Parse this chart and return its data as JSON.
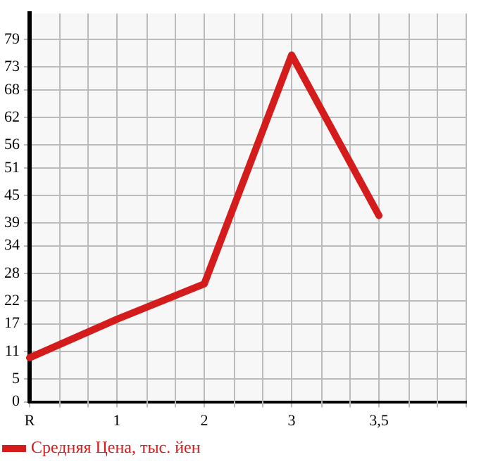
{
  "chart_data": {
    "type": "line",
    "categories": [
      "R",
      "1",
      "2",
      "3",
      "3,5",
      null
    ],
    "series": [
      {
        "name": "Средняя Цена, тыс. йен",
        "color": "#d41c1c",
        "values": [
          9.6,
          18,
          25.7,
          75.6,
          40.6,
          null
        ]
      }
    ],
    "ylim": [
      0,
      84.64
    ],
    "yticks": [
      0,
      5,
      11,
      17,
      22,
      28,
      34,
      39,
      45,
      51,
      56,
      62,
      68,
      73,
      79
    ],
    "grid": true,
    "legend": "bottom left",
    "marker": "none",
    "line_style": "solid"
  }
}
